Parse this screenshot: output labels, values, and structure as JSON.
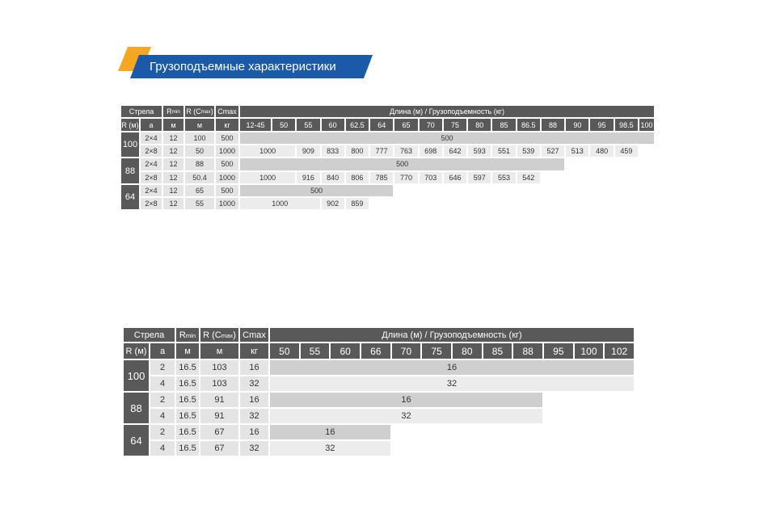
{
  "title": "Грузоподъемные характеристики",
  "tables": [
    {
      "header": {
        "boom": "Стрела",
        "rmin": {
          "text": "R",
          "sub": "min"
        },
        "rcmax": {
          "text": "R (C",
          "sub": "max",
          "after": ")"
        },
        "cmax": "Cmax",
        "length": "Длина (м) / Грузоподъемность (кг)"
      },
      "subheader": [
        "R (м)",
        "a",
        "м",
        "м",
        "кг"
      ],
      "lengths": [
        "12-45",
        50,
        55,
        60,
        62.5,
        64,
        65,
        70,
        75,
        80,
        85,
        86.5,
        88,
        90,
        95,
        98.5,
        100
      ],
      "groups": [
        {
          "boom": 100,
          "rows": [
            {
              "cells": [
                "2×4",
                12,
                100,
                500
              ],
              "loads": [
                {
                  "value": 500,
                  "span": 17
                }
              ]
            },
            {
              "cells": [
                "2×8",
                12,
                50,
                1000
              ],
              "loads": [
                {
                  "value": 1000,
                  "span": 2
                },
                {
                  "value": 909,
                  "span": 1
                },
                {
                  "value": 833,
                  "span": 1
                },
                {
                  "value": 800,
                  "span": 1
                },
                {
                  "value": 777,
                  "span": 1
                },
                {
                  "value": 763,
                  "span": 1
                },
                {
                  "value": 698,
                  "span": 1
                },
                {
                  "value": 642,
                  "span": 1
                },
                {
                  "value": 593,
                  "span": 1
                },
                {
                  "value": 551,
                  "span": 1
                },
                {
                  "value": 539,
                  "span": 1
                },
                {
                  "value": 527,
                  "span": 1
                },
                {
                  "value": 513,
                  "span": 1
                },
                {
                  "value": 480,
                  "span": 1
                },
                {
                  "value": 459,
                  "span": 1
                }
              ]
            }
          ]
        },
        {
          "boom": 88,
          "rows": [
            {
              "cells": [
                "2×4",
                12,
                88,
                500
              ],
              "loads": [
                {
                  "value": 500,
                  "span": 13
                }
              ]
            },
            {
              "cells": [
                "2×8",
                12,
                50.4,
                1000
              ],
              "loads": [
                {
                  "value": 1000,
                  "span": 2
                },
                {
                  "value": 916,
                  "span": 1
                },
                {
                  "value": 840,
                  "span": 1
                },
                {
                  "value": 806,
                  "span": 1
                },
                {
                  "value": 785,
                  "span": 1
                },
                {
                  "value": 770,
                  "span": 1
                },
                {
                  "value": 703,
                  "span": 1
                },
                {
                  "value": 646,
                  "span": 1
                },
                {
                  "value": 597,
                  "span": 1
                },
                {
                  "value": 553,
                  "span": 1
                },
                {
                  "value": 542,
                  "span": 1
                }
              ]
            }
          ]
        },
        {
          "boom": 64,
          "rows": [
            {
              "cells": [
                "2×4",
                12,
                65,
                500
              ],
              "loads": [
                {
                  "value": 500,
                  "span": 6
                }
              ]
            },
            {
              "cells": [
                "2×8",
                12,
                55,
                1000
              ],
              "loads": [
                {
                  "value": 1000,
                  "span": 3
                },
                {
                  "value": 902,
                  "span": 1
                },
                {
                  "value": 859,
                  "span": 1
                }
              ]
            }
          ]
        }
      ]
    },
    {
      "header": {
        "boom": "Стрела",
        "rmin": {
          "text": "R",
          "sub": "min"
        },
        "rcmax": {
          "text": "R (C",
          "sub": "max",
          "after": ")"
        },
        "cmax": "Cmax",
        "length": "Длина (м) / Грузоподъемность (кг)"
      },
      "subheader": [
        "R (м)",
        "a",
        "м",
        "м",
        "кг"
      ],
      "lengths": [
        50,
        55,
        60,
        66,
        70,
        75,
        80,
        85,
        88,
        95,
        100,
        102
      ],
      "groups": [
        {
          "boom": 100,
          "rows": [
            {
              "cells": [
                2,
                16.5,
                103,
                16
              ],
              "loads": [
                {
                  "value": 16,
                  "span": 12
                }
              ]
            },
            {
              "cells": [
                4,
                16.5,
                103,
                32
              ],
              "loads": [
                {
                  "value": 32,
                  "span": 12
                }
              ]
            }
          ]
        },
        {
          "boom": 88,
          "rows": [
            {
              "cells": [
                2,
                16.5,
                91,
                16
              ],
              "loads": [
                {
                  "value": 16,
                  "span": 9
                }
              ]
            },
            {
              "cells": [
                4,
                16.5,
                91,
                32
              ],
              "loads": [
                {
                  "value": 32,
                  "span": 9
                }
              ]
            }
          ]
        },
        {
          "boom": 64,
          "rows": [
            {
              "cells": [
                2,
                16.5,
                67,
                16
              ],
              "loads": [
                {
                  "value": 16,
                  "span": 4
                }
              ]
            },
            {
              "cells": [
                4,
                16.5,
                67,
                32
              ],
              "loads": [
                {
                  "value": 32,
                  "span": 4
                }
              ]
            }
          ]
        }
      ]
    }
  ]
}
